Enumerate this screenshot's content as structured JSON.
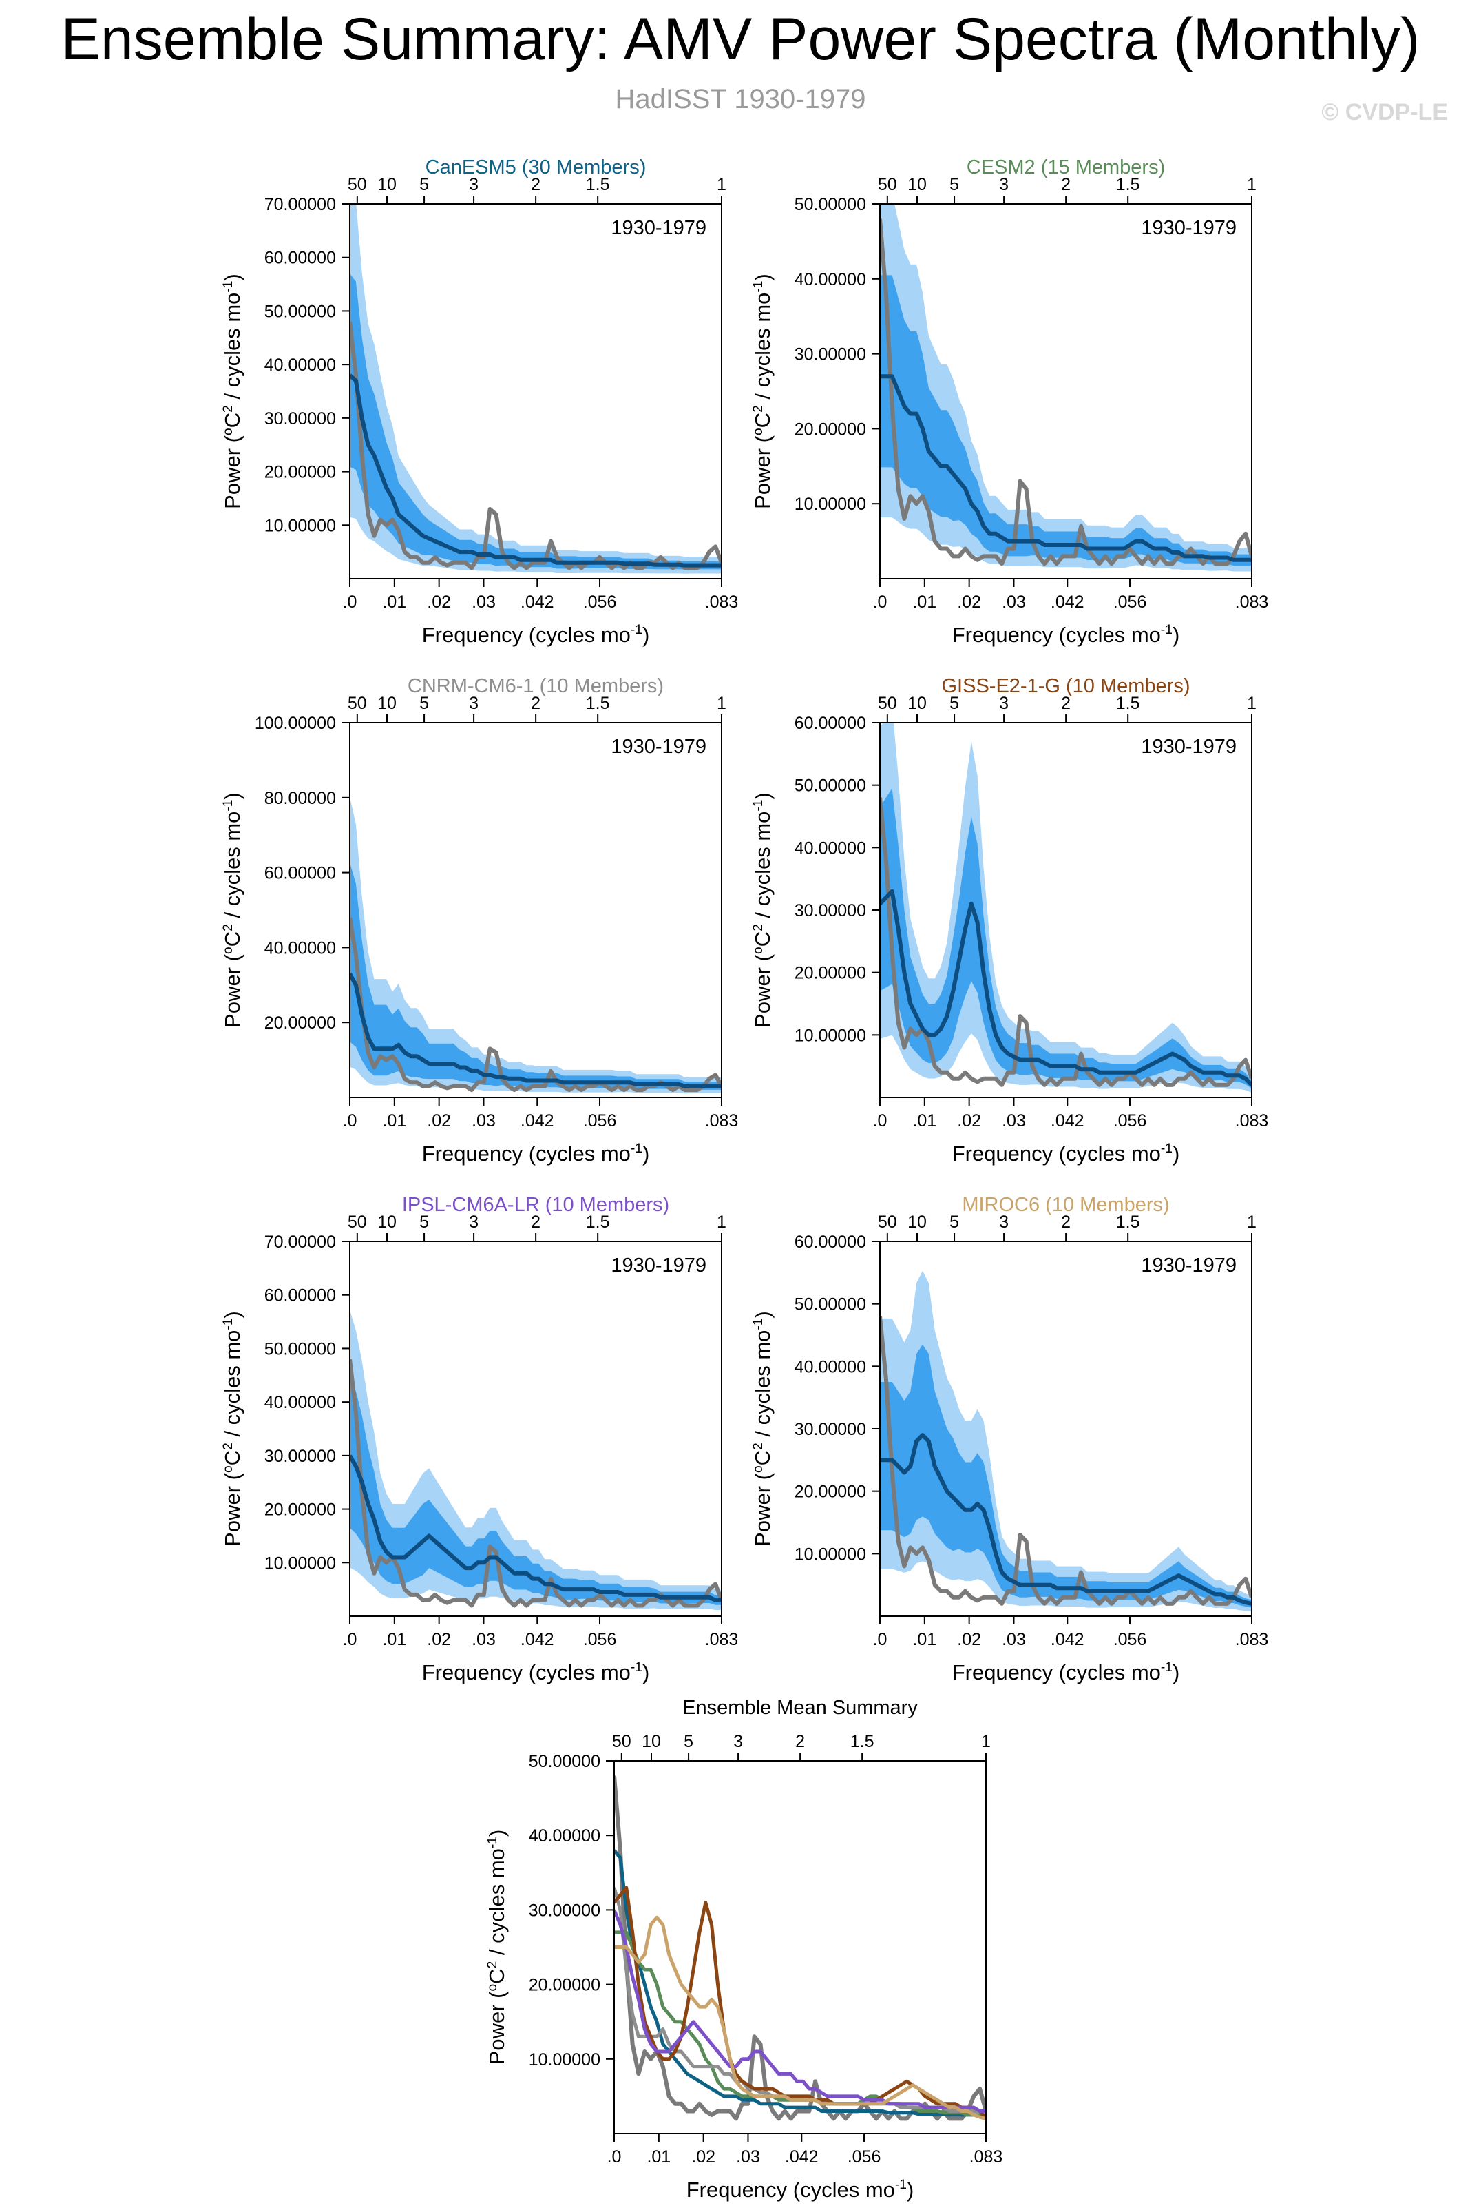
{
  "title": "Ensemble Summary: AMV Power Spectra (Monthly)",
  "subtitle": "HadISST 1930-1979",
  "credit": "© CVDP-LE",
  "chart_data": {
    "type": "line",
    "x_label": "Frequency (cycles mo",
    "x_label_sup": "-1",
    "x_label_end": ")",
    "y_label_a": "Power (",
    "y_label_deg": "o",
    "y_label_b": "C",
    "y_label_sq": "2",
    "y_label_c": " / cycles mo",
    "y_label_neg": "-1",
    "y_label_d": ")",
    "x_range": [
      0,
      0.0833
    ],
    "bottom_ticks": [
      {
        "value": 0,
        "label": ".0"
      },
      {
        "value": 0.01,
        "label": ".01"
      },
      {
        "value": 0.02,
        "label": ".02"
      },
      {
        "value": 0.03,
        "label": ".03"
      },
      {
        "value": 0.042,
        "label": ".042"
      },
      {
        "value": 0.056,
        "label": ".056"
      },
      {
        "value": 0.0833,
        "label": ".083"
      }
    ],
    "top_ticks": [
      {
        "value": 0.00167,
        "label": "50"
      },
      {
        "value": 0.00833,
        "label": "10"
      },
      {
        "value": 0.01667,
        "label": "5"
      },
      {
        "value": 0.02778,
        "label": "3"
      },
      {
        "value": 0.04167,
        "label": "2"
      },
      {
        "value": 0.05556,
        "label": "1.5"
      },
      {
        "value": 0.0833,
        "label": "1"
      }
    ],
    "period_text": "1930-1979",
    "observed": {
      "name": "HadISST",
      "color": "#7a7a7a",
      "values": [
        48,
        38,
        23,
        12,
        8,
        11,
        10,
        11,
        9,
        5,
        4,
        4,
        3,
        3,
        4,
        3,
        2.5,
        3,
        3,
        3,
        2,
        4,
        4,
        13,
        12,
        5,
        3,
        2,
        3,
        2,
        3,
        3,
        3,
        7,
        4,
        3,
        2,
        3,
        2,
        3,
        3,
        4,
        3,
        2,
        3,
        2,
        3,
        2,
        2,
        3,
        3,
        4,
        3,
        2,
        3,
        2,
        2,
        2,
        3,
        5,
        6,
        3
      ]
    },
    "panels": [
      {
        "name": "CanESM5 (30 Members)",
        "title_color": "#0e6285",
        "y_max": 70,
        "y_ticks": [
          10,
          20,
          30,
          40,
          50,
          60,
          70
        ],
        "y_tick_labels": [
          "10.00000",
          "20.00000",
          "30.00000",
          "40.00000",
          "50.00000",
          "60.00000",
          "70.00000"
        ],
        "mean": [
          38,
          37,
          30,
          25,
          23,
          20,
          17,
          15,
          12,
          11,
          10,
          9,
          8,
          7.5,
          7,
          6.5,
          6,
          5.5,
          5,
          5,
          5,
          4.5,
          4.5,
          4.5,
          4,
          4,
          4,
          4,
          3.5,
          3.5,
          3.5,
          3.5,
          3.5,
          3.5,
          3,
          3,
          3,
          3,
          3,
          3,
          3,
          3,
          3,
          3,
          3,
          2.8,
          2.8,
          2.8,
          2.8,
          2.8,
          2.6,
          2.6,
          2.6,
          2.6,
          2.6,
          2.5,
          2.5,
          2.5,
          2.5,
          2.5,
          2.5,
          2.5
        ],
        "scale_75": [
          1.5,
          1.5,
          1.45,
          1.45,
          1.4,
          1.4,
          1.35,
          1.35,
          1.3,
          1.3
        ],
        "scale_25": [
          0.55,
          0.55,
          0.6,
          0.6,
          0.62,
          0.62,
          0.65,
          0.65,
          0.68,
          0.7
        ]
      },
      {
        "name": "CESM2 (15 Members)",
        "title_color": "#5a8c5a",
        "y_max": 50,
        "y_ticks": [
          10,
          20,
          30,
          40,
          50
        ],
        "y_tick_labels": [
          "10.00000",
          "20.00000",
          "30.00000",
          "40.00000",
          "50.00000"
        ],
        "mean": [
          27,
          27,
          27,
          25,
          23,
          22,
          22,
          20,
          17,
          16,
          15,
          15,
          14,
          13,
          12,
          10,
          9,
          7,
          6,
          6,
          5.5,
          5,
          5,
          5,
          5,
          5,
          5,
          4.5,
          4.5,
          4.5,
          4.5,
          4.5,
          4.5,
          4.5,
          4,
          4,
          4,
          4,
          4,
          4,
          4,
          4.5,
          5,
          5,
          4.5,
          4,
          4,
          4,
          3.5,
          3.5,
          3,
          3,
          3,
          3,
          2.8,
          2.8,
          2.8,
          2.8,
          2.5,
          2.5,
          2.5,
          2.5
        ],
        "scale_75": [
          1.5,
          1.5,
          1.45,
          1.45,
          1.4,
          1.4,
          1.35,
          1.35,
          1.3,
          1.3
        ],
        "scale_25": [
          0.55,
          0.55,
          0.6,
          0.6,
          0.62,
          0.62,
          0.65,
          0.65,
          0.68,
          0.7
        ]
      },
      {
        "name": "CNRM-CM6-1 (10 Members)",
        "title_color": "#8e8e8e",
        "y_max": 100,
        "y_ticks": [
          20,
          40,
          60,
          80,
          100
        ],
        "y_tick_labels": [
          "20.00000",
          "40.00000",
          "60.00000",
          "80.00000",
          "100.00000"
        ],
        "mean": [
          33,
          30,
          22,
          16,
          13,
          13,
          13,
          13,
          14,
          12,
          11,
          11,
          10,
          9,
          9,
          9,
          9,
          9,
          8,
          8,
          7,
          7,
          6,
          6,
          5.5,
          5.5,
          5,
          5,
          5,
          4.5,
          4.5,
          4.5,
          4.5,
          4.5,
          4.5,
          4,
          4,
          4,
          4,
          4,
          4,
          4,
          4,
          4,
          4,
          4,
          4,
          3.5,
          3.5,
          3.5,
          3.5,
          3.5,
          3.5,
          3.5,
          3.5,
          3,
          3,
          3,
          3,
          3,
          3,
          3
        ],
        "scale_75": [
          1.9,
          1.7,
          1.6,
          1.5,
          1.5,
          1.45,
          1.45,
          1.4,
          1.4,
          1.4
        ],
        "scale_25": [
          0.45,
          0.5,
          0.55,
          0.55,
          0.6,
          0.6,
          0.62,
          0.65,
          0.65,
          0.68
        ]
      },
      {
        "name": "GISS-E2-1-G (10 Members)",
        "title_color": "#8b4513",
        "y_max": 60,
        "y_ticks": [
          10,
          20,
          30,
          40,
          50,
          60
        ],
        "y_tick_labels": [
          "10.00000",
          "20.00000",
          "30.00000",
          "40.00000",
          "50.00000",
          "60.00000"
        ],
        "mean": [
          31,
          32,
          33,
          27,
          20,
          15,
          13,
          11,
          10,
          10,
          11,
          13,
          17,
          22,
          27,
          31,
          28,
          20,
          14,
          10,
          8,
          7,
          6.5,
          6,
          6,
          6,
          6,
          5.5,
          5,
          5,
          5,
          5,
          5,
          4.5,
          4.5,
          4.5,
          4,
          4,
          4,
          4,
          4,
          4,
          4,
          4.5,
          5,
          5.5,
          6,
          6.5,
          7,
          6.5,
          6,
          5,
          4.5,
          4,
          4,
          4,
          4,
          3.5,
          3.5,
          3.5,
          3,
          2
        ],
        "scale_75": [
          1.5,
          1.5,
          1.45,
          1.45,
          1.4,
          1.4,
          1.35,
          1.35,
          1.3,
          1.3
        ],
        "scale_25": [
          0.55,
          0.55,
          0.6,
          0.6,
          0.62,
          0.62,
          0.65,
          0.65,
          0.68,
          0.7
        ]
      },
      {
        "name": "IPSL-CM6A-LR (10 Members)",
        "title_color": "#7b50c8",
        "y_max": 70,
        "y_ticks": [
          10,
          20,
          30,
          40,
          50,
          60,
          70
        ],
        "y_tick_labels": [
          "10.00000",
          "20.00000",
          "30.00000",
          "40.00000",
          "50.00000",
          "60.00000",
          "70.00000"
        ],
        "mean": [
          30,
          28,
          25,
          21,
          18,
          14,
          12,
          11,
          11,
          11,
          12,
          13,
          14,
          15,
          14,
          13,
          12,
          11,
          10,
          9,
          9,
          10,
          10,
          11,
          11,
          10,
          9,
          8,
          8,
          8,
          7,
          7,
          6,
          6,
          5.5,
          5,
          5,
          5,
          5,
          5,
          5,
          4.5,
          4.5,
          4.5,
          4.5,
          4,
          4,
          4,
          4,
          4,
          4,
          3.5,
          3.5,
          3.5,
          3.5,
          3.5,
          3.5,
          3.5,
          3.5,
          3.5,
          3,
          3
        ],
        "scale_75": [
          1.5,
          1.5,
          1.45,
          1.45,
          1.4,
          1.4,
          1.35,
          1.35,
          1.3,
          1.3
        ],
        "scale_25": [
          0.55,
          0.55,
          0.6,
          0.6,
          0.62,
          0.62,
          0.65,
          0.65,
          0.68,
          0.7
        ]
      },
      {
        "name": "MIROC6 (10 Members)",
        "title_color": "#c9a36a",
        "y_max": 60,
        "y_ticks": [
          10,
          20,
          30,
          40,
          50,
          60
        ],
        "y_tick_labels": [
          "10.00000",
          "20.00000",
          "30.00000",
          "40.00000",
          "50.00000",
          "60.00000"
        ],
        "mean": [
          25,
          25,
          25,
          24,
          23,
          24,
          28,
          29,
          28,
          24,
          22,
          20,
          19,
          18,
          17,
          17,
          18,
          17,
          14,
          10,
          7,
          6,
          5.5,
          5,
          5,
          5,
          5,
          5,
          5,
          4.5,
          4.5,
          4.5,
          4.5,
          4.5,
          4,
          4,
          4,
          4,
          4,
          4,
          4,
          4,
          4,
          4,
          4,
          4.5,
          5,
          5.5,
          6,
          6.5,
          6,
          5.5,
          5,
          4.5,
          4,
          3.5,
          3.5,
          3,
          3,
          2.5,
          2.2,
          2
        ],
        "scale_75": [
          1.5,
          1.5,
          1.45,
          1.45,
          1.4,
          1.4,
          1.35,
          1.35,
          1.3,
          1.3
        ],
        "scale_25": [
          0.55,
          0.55,
          0.6,
          0.6,
          0.62,
          0.62,
          0.65,
          0.65,
          0.68,
          0.7
        ]
      }
    ],
    "summary": {
      "title": "Ensemble Mean Summary",
      "y_max": 50,
      "y_ticks": [
        10,
        20,
        30,
        40,
        50
      ],
      "y_tick_labels": [
        "10.00000",
        "20.00000",
        "30.00000",
        "40.00000",
        "50.00000"
      ],
      "series_colors": [
        "#0e6285",
        "#5a8c5a",
        "#8e8e8e",
        "#8b4513",
        "#7b50c8",
        "#c9a36a"
      ]
    }
  }
}
